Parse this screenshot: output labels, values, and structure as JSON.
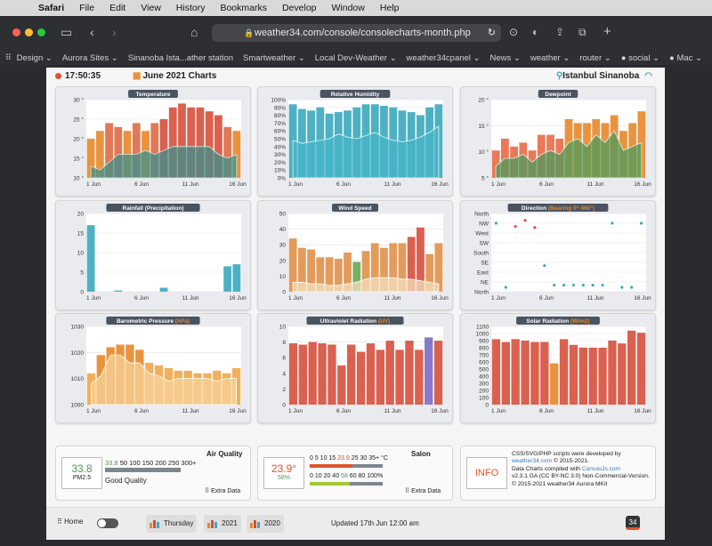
{
  "menubar": {
    "app": "Safari",
    "items": [
      "File",
      "Edit",
      "View",
      "History",
      "Bookmarks",
      "Develop",
      "Window",
      "Help"
    ]
  },
  "browser": {
    "url": "weather34.com/console/consolecharts-month.php",
    "favorites": [
      "Design",
      "Aurora Sites",
      "Sinanoba Ista...ather station",
      "Smartweather",
      "Local Dev-Weather",
      "weather34cpanel",
      "News",
      "weather",
      "router",
      "social",
      "Mac"
    ]
  },
  "page": {
    "time": "17:50:35",
    "title": "June 2021 Charts",
    "location": "Istanbul Sinanoba"
  },
  "chart_data": [
    {
      "name": "temperature",
      "type": "bar",
      "title": "Temperature",
      "unit": "°",
      "ylim": [
        10,
        30
      ],
      "yticks": [
        "10 °",
        "15 °",
        "20 °",
        "25 °",
        "30 °"
      ],
      "xticks": [
        "1 Jun",
        "6 Jun",
        "11 Jun",
        "16 Jun"
      ],
      "series": [
        {
          "name": "High",
          "values": [
            20,
            22,
            24,
            23,
            22,
            24,
            22,
            24,
            25,
            28,
            29,
            28,
            28,
            27,
            26,
            23,
            22
          ]
        },
        {
          "name": "Low",
          "values": [
            13,
            12,
            14,
            16,
            16,
            16,
            17,
            16,
            17,
            18,
            18,
            18,
            18,
            18,
            16,
            15,
            16
          ]
        }
      ]
    },
    {
      "name": "humidity",
      "type": "bar",
      "title": "Relative Humidity",
      "unit": "%",
      "ylim": [
        0,
        100
      ],
      "yticks": [
        "0%",
        "10%",
        "20%",
        "30%",
        "40%",
        "50%",
        "60%",
        "70%",
        "80%",
        "90%",
        "100%"
      ],
      "xticks": [
        "1 Jun",
        "6 Jun",
        "11 Jun",
        "16 Jun"
      ],
      "series": [
        {
          "name": "Max",
          "values": [
            94,
            88,
            86,
            90,
            82,
            84,
            86,
            90,
            94,
            94,
            92,
            90,
            86,
            84,
            80,
            90,
            94
          ]
        },
        {
          "name": "Min",
          "values": [
            48,
            44,
            46,
            48,
            50,
            56,
            52,
            50,
            54,
            58,
            52,
            48,
            46,
            48,
            52,
            58,
            66
          ]
        }
      ]
    },
    {
      "name": "dewpoint",
      "type": "bar",
      "title": "Dewpoint",
      "unit": "°",
      "ylim": [
        5,
        25
      ],
      "yticks": [
        "5 °",
        "10 °",
        "15 °",
        "20 °"
      ],
      "xticks": [
        "1 Jun",
        "6 Jun",
        "11 Jun",
        "16 Jun"
      ],
      "series": [
        {
          "name": "High",
          "values": [
            12,
            15,
            13,
            14,
            12,
            16,
            16,
            15,
            20,
            19,
            19,
            20,
            19,
            21,
            17,
            19,
            22
          ]
        },
        {
          "name": "Low",
          "values": [
            8,
            10,
            10,
            11,
            9,
            11,
            12,
            11,
            14,
            15,
            13,
            16,
            14,
            17,
            12,
            13,
            14
          ]
        }
      ]
    },
    {
      "name": "rainfall",
      "type": "bar",
      "title": "Rainfall (Precipitation)",
      "ylim": [
        0,
        20
      ],
      "yticks": [
        "0",
        "5",
        "10",
        "15",
        "20"
      ],
      "xticks": [
        "1 Jun",
        "6 Jun",
        "11 Jun",
        "16 Jun"
      ],
      "values": [
        17,
        0,
        0,
        0.3,
        0,
        0,
        0,
        0,
        1,
        0,
        0,
        0,
        0,
        0,
        0,
        6.5,
        7
      ]
    },
    {
      "name": "wind",
      "type": "bar",
      "title": "Wind Speed",
      "ylim": [
        0,
        50
      ],
      "yticks": [
        "0",
        "10",
        "20",
        "30",
        "40",
        "50"
      ],
      "xticks": [
        "1 Jun",
        "6 Jun",
        "11 Jun",
        "16 Jun"
      ],
      "series": [
        {
          "name": "Gust",
          "values": [
            34,
            28,
            27,
            22,
            22,
            21,
            25,
            19,
            26,
            31,
            28,
            31,
            31,
            35,
            41,
            24,
            31
          ]
        },
        {
          "name": "Avg",
          "values": [
            6,
            6,
            5,
            5,
            4,
            4,
            5,
            6,
            8,
            9,
            9,
            9,
            8,
            8,
            7,
            6,
            5
          ]
        }
      ]
    },
    {
      "name": "direction",
      "type": "scatter",
      "title": "Direction",
      "subtitle": "Bearing 0°-360°",
      "yticks": [
        "North",
        "NE",
        "East",
        "SE",
        "South",
        "SW",
        "West",
        "NW",
        "North"
      ],
      "xticks": [
        "1 Jun",
        "6 Jun",
        "11 Jun",
        "16 Jun"
      ],
      "values": [
        315,
        20,
        300,
        328,
        295,
        120,
        30,
        30,
        30,
        30,
        30,
        30,
        315,
        20,
        20,
        315
      ]
    },
    {
      "name": "barometer",
      "type": "bar",
      "title": "Barometric Pressure",
      "subtitle": "hPa",
      "ylim": [
        1000,
        1030
      ],
      "yticks": [
        "1000",
        "1010",
        "1020",
        "1030"
      ],
      "xticks": [
        "1 Jun",
        "6 Jun",
        "11 Jun",
        "16 Jun"
      ],
      "series": [
        {
          "name": "Max",
          "values": [
            1012,
            1019,
            1022,
            1023,
            1023,
            1021,
            1016,
            1015,
            1014,
            1013,
            1013,
            1012,
            1012,
            1013,
            1012,
            1014
          ]
        },
        {
          "name": "Min",
          "values": [
            1008,
            1011,
            1019,
            1019,
            1016,
            1016,
            1012,
            1011,
            1009,
            1010,
            1010,
            1010,
            1010,
            1009,
            1010,
            1010
          ]
        }
      ]
    },
    {
      "name": "uv",
      "type": "bar",
      "title": "Ultraviolet Radiation",
      "subtitle": "UV",
      "ylim": [
        0,
        12
      ],
      "yticks": [
        "0",
        "2",
        "4",
        "6",
        "8",
        "10"
      ],
      "xticks": [
        "1 Jun",
        "6 Jun",
        "11 Jun",
        "16 Jun"
      ],
      "values": [
        9.4,
        9.2,
        9.6,
        9.4,
        9.2,
        6.0,
        9.2,
        8.1,
        9.4,
        8.4,
        9.8,
        8.4,
        9.8,
        8.4,
        10.3,
        9.8
      ]
    },
    {
      "name": "solar",
      "type": "bar",
      "title": "Solar Radiation",
      "subtitle": "W/m2",
      "ylim": [
        0,
        1100
      ],
      "yticks": [
        "0",
        "100",
        "200",
        "300",
        "400",
        "500",
        "600",
        "700",
        "800",
        "900",
        "1000",
        "1100"
      ],
      "xticks": [
        "1 Jun",
        "6 Jun",
        "11 Jun",
        "16 Jun"
      ],
      "values": [
        920,
        880,
        920,
        900,
        880,
        880,
        580,
        920,
        840,
        800,
        800,
        800,
        900,
        860,
        1040,
        1010
      ]
    }
  ],
  "airquality": {
    "title": "Air Quality",
    "value": "33.8",
    "unit": "PM2.5",
    "scale_first": "33.8",
    "scale": "50 100 150 200 250 300+",
    "status": "Good Quality",
    "extra": "Extra Data"
  },
  "salon": {
    "title": "Salon",
    "temp": "23.9°",
    "hum": "58%",
    "temp_scale_a": "0 5 10 15",
    "temp_scale_hl": "23.9",
    "temp_scale_b": "25 30 35+ °C",
    "hum_scale_a": "0 10 20 40",
    "hum_scale_hl": "58",
    "hum_scale_b": "60 80 100%",
    "extra": "Extra Data"
  },
  "info": {
    "label": "INFO",
    "line1": "CSS/SVG/PHP scripts were developed by",
    "link1": "weather34.com",
    "line1b": "© 2015-2021.",
    "line2": "Data Charts compiled with",
    "link2": "CanvasJs.com",
    "line2b": "v2.3.1 GA (CC BY-NC 3.0) Non-Commercial-Version.",
    "line3": "© 2015-2021 weather34 Aurora MKII"
  },
  "footer": {
    "home": "Home",
    "b1": "Thursday",
    "b2": "2021",
    "b3": "2020",
    "updated": "Updated 17th Jun 12:00 am",
    "logo": "34"
  },
  "colors": {
    "orange": "#e8872a",
    "red": "#d64f3c",
    "teal": "#3aa9bd",
    "green": "#4f9a5a",
    "purple": "#7b6bc4"
  }
}
